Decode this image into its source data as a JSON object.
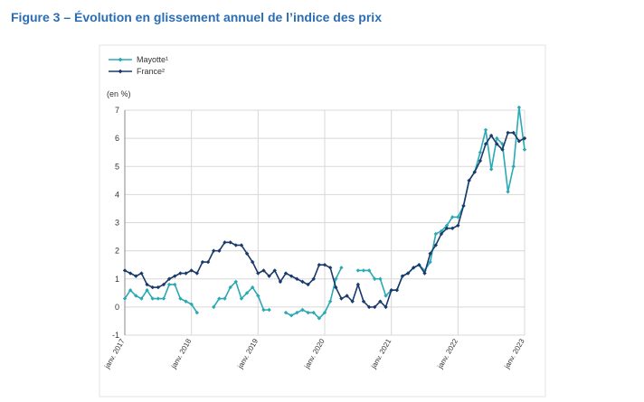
{
  "chart_data": {
    "type": "line",
    "title": "Figure 3 – Évolution en glissement annuel de l’indice des prix",
    "y_label": "(en %)",
    "categories": [
      "janv. 2017",
      null,
      null,
      null,
      null,
      null,
      null,
      null,
      null,
      null,
      null,
      null,
      "janv. 2018",
      null,
      null,
      null,
      null,
      null,
      null,
      null,
      null,
      null,
      null,
      null,
      "janv. 2019",
      null,
      null,
      null,
      null,
      null,
      null,
      null,
      null,
      null,
      null,
      null,
      "janv. 2020",
      null,
      null,
      null,
      null,
      null,
      null,
      null,
      null,
      null,
      null,
      null,
      "janv. 2021",
      null,
      null,
      null,
      null,
      null,
      null,
      null,
      null,
      null,
      null,
      null,
      "janv. 2022",
      null,
      null,
      null,
      null,
      null,
      null,
      null,
      null,
      null,
      null,
      null,
      "janv. 2023"
    ],
    "series": [
      {
        "name": "Mayotte¹",
        "color": "#2aa9b5",
        "values": [
          0.3,
          0.6,
          0.4,
          0.3,
          0.6,
          0.3,
          0.3,
          0.3,
          0.8,
          0.8,
          0.3,
          0.2,
          0.1,
          -0.2,
          null,
          null,
          0.0,
          0.3,
          0.3,
          0.7,
          0.9,
          0.3,
          0.5,
          0.7,
          0.4,
          -0.1,
          -0.1,
          null,
          null,
          -0.2,
          -0.3,
          -0.2,
          -0.1,
          -0.2,
          -0.2,
          -0.4,
          -0.2,
          0.2,
          1.0,
          1.4,
          null,
          null,
          1.3,
          1.3,
          1.3,
          1.0,
          1.0,
          0.4,
          0.6,
          0.6,
          1.1,
          1.2,
          1.4,
          1.5,
          1.3,
          1.6,
          2.6,
          2.7,
          2.9,
          3.2,
          3.2,
          3.6,
          4.5,
          4.8,
          5.5,
          6.3,
          4.9,
          6.0,
          5.8,
          4.1,
          5.0,
          7.1,
          5.6
        ]
      },
      {
        "name": "France²",
        "color": "#1a3a6b",
        "values": [
          1.3,
          1.2,
          1.1,
          1.2,
          0.8,
          0.7,
          0.7,
          0.8,
          1.0,
          1.1,
          1.2,
          1.2,
          1.3,
          1.2,
          1.6,
          1.6,
          2.0,
          2.0,
          2.3,
          2.3,
          2.2,
          2.2,
          1.9,
          1.6,
          1.2,
          1.3,
          1.1,
          1.3,
          0.9,
          1.2,
          1.1,
          1.0,
          0.9,
          0.8,
          1.0,
          1.5,
          1.5,
          1.4,
          0.7,
          0.3,
          0.4,
          0.2,
          0.8,
          0.2,
          0.0,
          0.0,
          0.2,
          0.0,
          0.6,
          0.6,
          1.1,
          1.2,
          1.4,
          1.5,
          1.2,
          1.9,
          2.2,
          2.6,
          2.8,
          2.8,
          2.9,
          3.6,
          4.5,
          4.8,
          5.2,
          5.8,
          6.1,
          5.8,
          5.6,
          6.2,
          6.2,
          5.9,
          6.0
        ]
      }
    ],
    "ylim": [
      -1,
      7
    ],
    "yticks": [
      -1,
      0,
      1,
      2,
      3,
      4,
      5,
      6,
      7
    ],
    "grid": true
  }
}
